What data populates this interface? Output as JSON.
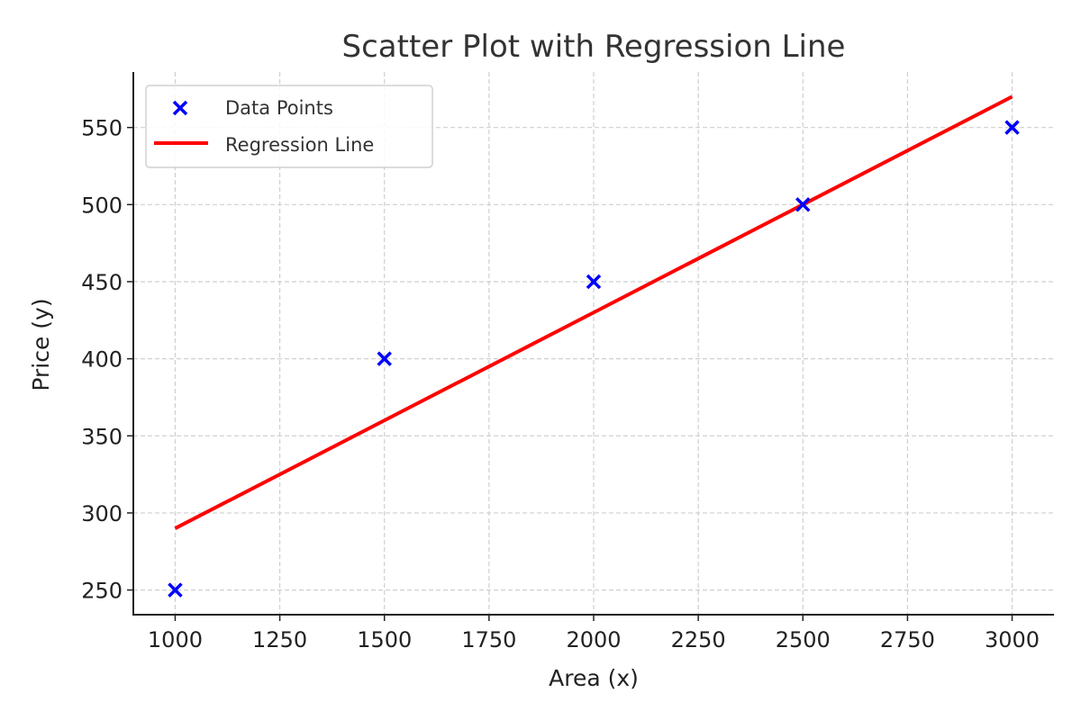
{
  "chart_data": {
    "type": "scatter",
    "title": "Scatter Plot with Regression Line",
    "xlabel": "Area (x)",
    "ylabel": "Price (y)",
    "xlim": [
      900,
      3100
    ],
    "ylim": [
      234,
      586
    ],
    "xticks": [
      1000,
      1250,
      1500,
      1750,
      2000,
      2250,
      2500,
      2750,
      3000
    ],
    "yticks": [
      250,
      300,
      350,
      400,
      450,
      500,
      550
    ],
    "grid": true,
    "legend_position": "top-left",
    "series": [
      {
        "name": "Data Points",
        "kind": "scatter",
        "marker": "x",
        "color": "#0000ff",
        "x": [
          1000,
          1500,
          2000,
          2500,
          3000
        ],
        "y": [
          250,
          400,
          450,
          500,
          550
        ]
      },
      {
        "name": "Regression Line",
        "kind": "line",
        "color": "#ff0000",
        "x": [
          1000,
          1500,
          2000,
          2500,
          3000
        ],
        "y": [
          290,
          360,
          430,
          500,
          570
        ]
      }
    ]
  }
}
